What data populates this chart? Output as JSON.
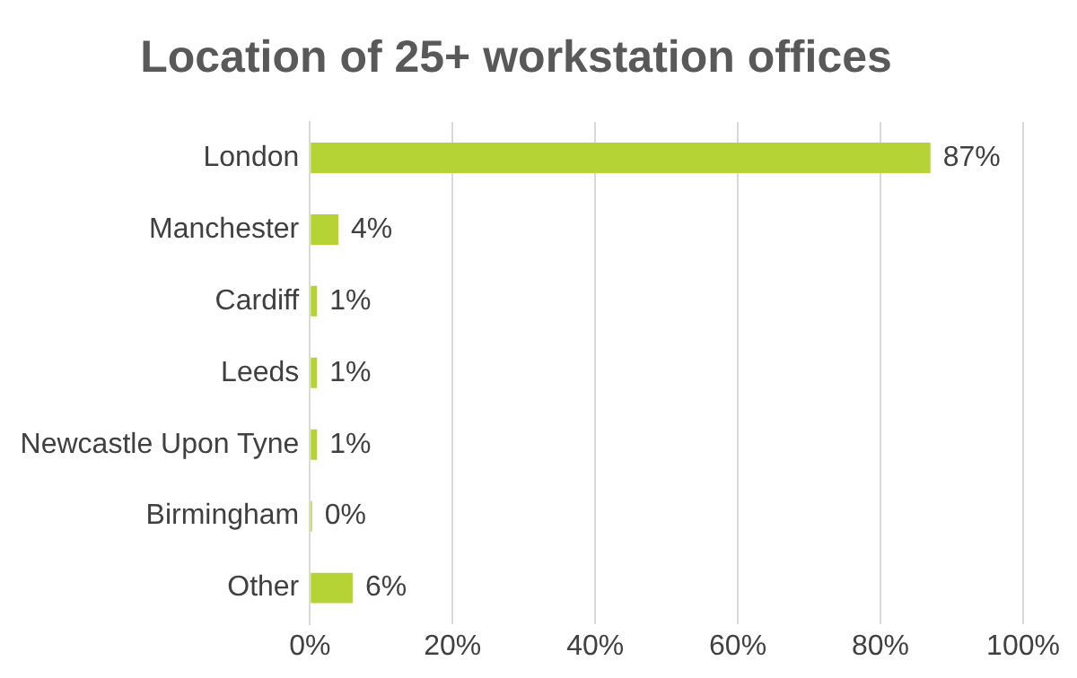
{
  "chart_data": {
    "type": "bar",
    "orientation": "horizontal",
    "title": "Location of 25+ workstation offices",
    "categories": [
      "London",
      "Manchester",
      "Cardiff",
      "Leeds",
      "Newcastle Upon Tyne",
      "Birmingham",
      "Other"
    ],
    "values": [
      87,
      4,
      1,
      1,
      1,
      0.3,
      6
    ],
    "value_labels": [
      "87%",
      "4%",
      "1%",
      "1%",
      "1%",
      "0%",
      "6%"
    ],
    "color": "#b5d334",
    "xlim": [
      0,
      100
    ],
    "xticks": [
      {
        "value": 0,
        "label": "0%"
      },
      {
        "value": 20,
        "label": "20%"
      },
      {
        "value": 40,
        "label": "40%"
      },
      {
        "value": 60,
        "label": "60%"
      },
      {
        "value": 80,
        "label": "80%"
      },
      {
        "value": 100,
        "label": "100%"
      }
    ],
    "grid": "x",
    "legend": false
  }
}
